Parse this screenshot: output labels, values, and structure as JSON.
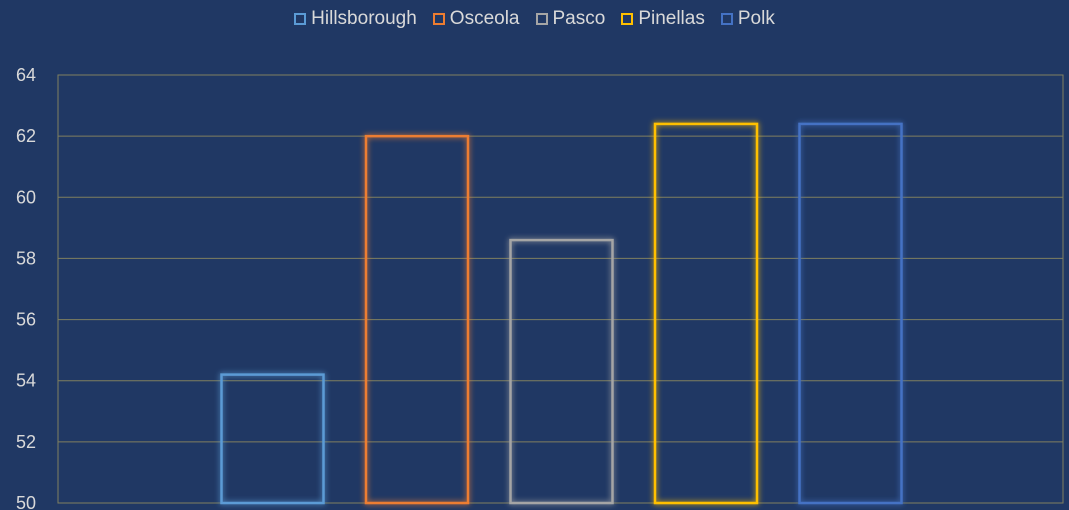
{
  "chart_data": {
    "type": "bar",
    "title": "",
    "xlabel": "",
    "ylabel": "",
    "ylim": [
      50,
      64
    ],
    "yticks": [
      50,
      52,
      54,
      56,
      58,
      60,
      62,
      64
    ],
    "grid": true,
    "legend_position": "top",
    "series": [
      {
        "name": "Hillsborough",
        "value": 54.2,
        "color": "#5b9bd5"
      },
      {
        "name": "Osceola",
        "value": 62.0,
        "color": "#ed7d31"
      },
      {
        "name": "Pasco",
        "value": 58.6,
        "color": "#a5a5a5"
      },
      {
        "name": "Pinellas",
        "value": 62.4,
        "color": "#ffc000"
      },
      {
        "name": "Polk",
        "value": 62.4,
        "color": "#4472c4"
      }
    ]
  },
  "colors": {
    "background": "#203864",
    "gridline": "#7f7f5f",
    "text": "#d9d9d9"
  }
}
